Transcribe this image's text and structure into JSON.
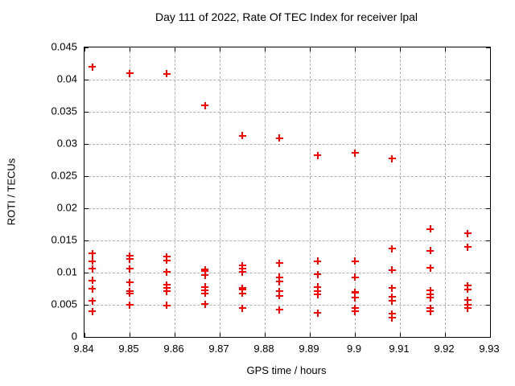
{
  "colors": {
    "marker": "#ff0000",
    "grid": "#b0b0b0",
    "border": "#000000",
    "background": "#ffffff",
    "text": "#000000"
  },
  "chart_data": {
    "type": "scatter",
    "title": "Day 111 of 2022, Rate Of TEC Index for receiver lpal",
    "xlabel": "GPS time / hours",
    "ylabel": "ROTI / TECUs",
    "xlim": [
      9.84,
      9.93
    ],
    "ylim": [
      0,
      0.045
    ],
    "grid": "dashed, at every labeled tick",
    "legend": "none",
    "marker": "plus",
    "x_ticks": [
      {
        "label": "9.84",
        "value": 9.84
      },
      {
        "label": "9.85",
        "value": 9.85
      },
      {
        "label": "9.86",
        "value": 9.86
      },
      {
        "label": "9.87",
        "value": 9.87
      },
      {
        "label": "9.88",
        "value": 9.88
      },
      {
        "label": "9.89",
        "value": 9.89
      },
      {
        "label": "9.9",
        "value": 9.9
      },
      {
        "label": "9.91",
        "value": 9.91
      },
      {
        "label": "9.92",
        "value": 9.92
      },
      {
        "label": "9.93",
        "value": 9.93
      }
    ],
    "y_ticks": [
      {
        "label": "0",
        "value": 0
      },
      {
        "label": "0.005",
        "value": 0.005
      },
      {
        "label": "0.01",
        "value": 0.01
      },
      {
        "label": "0.015",
        "value": 0.015
      },
      {
        "label": "0.02",
        "value": 0.02
      },
      {
        "label": "0.025",
        "value": 0.025
      },
      {
        "label": "0.03",
        "value": 0.03
      },
      {
        "label": "0.035",
        "value": 0.035
      },
      {
        "label": "0.04",
        "value": 0.04
      },
      {
        "label": "0.045",
        "value": 0.045
      }
    ],
    "series": [
      {
        "name": "ROTI",
        "color": "#ff0000",
        "points": [
          [
            9.8417,
            0.042
          ],
          [
            9.8417,
            0.013
          ],
          [
            9.8417,
            0.0118
          ],
          [
            9.8417,
            0.0106
          ],
          [
            9.8417,
            0.0088
          ],
          [
            9.8417,
            0.0075
          ],
          [
            9.8417,
            0.0056
          ],
          [
            9.8417,
            0.004
          ],
          [
            9.85,
            0.041
          ],
          [
            9.85,
            0.0126
          ],
          [
            9.85,
            0.0121
          ],
          [
            9.85,
            0.0106
          ],
          [
            9.85,
            0.0085
          ],
          [
            9.85,
            0.0071
          ],
          [
            9.85,
            0.0068
          ],
          [
            9.85,
            0.005
          ],
          [
            9.8583,
            0.0409
          ],
          [
            9.8583,
            0.0125
          ],
          [
            9.8583,
            0.0119
          ],
          [
            9.8583,
            0.0101
          ],
          [
            9.8583,
            0.0081
          ],
          [
            9.8583,
            0.0076
          ],
          [
            9.8583,
            0.0071
          ],
          [
            9.8583,
            0.0049
          ],
          [
            9.8667,
            0.036
          ],
          [
            9.8667,
            0.0105
          ],
          [
            9.8667,
            0.0103
          ],
          [
            9.8667,
            0.0096
          ],
          [
            9.8667,
            0.0078
          ],
          [
            9.8667,
            0.0073
          ],
          [
            9.8667,
            0.0068
          ],
          [
            9.8667,
            0.0051
          ],
          [
            9.875,
            0.0313
          ],
          [
            9.875,
            0.0111
          ],
          [
            9.875,
            0.0106
          ],
          [
            9.875,
            0.0101
          ],
          [
            9.875,
            0.0076
          ],
          [
            9.875,
            0.0074
          ],
          [
            9.875,
            0.0068
          ],
          [
            9.875,
            0.0045
          ],
          [
            9.8833,
            0.0309
          ],
          [
            9.8833,
            0.0115
          ],
          [
            9.8833,
            0.0093
          ],
          [
            9.8833,
            0.0086
          ],
          [
            9.8833,
            0.0071
          ],
          [
            9.8833,
            0.0064
          ],
          [
            9.8833,
            0.0042
          ],
          [
            9.8917,
            0.0282
          ],
          [
            9.8917,
            0.0118
          ],
          [
            9.8917,
            0.0097
          ],
          [
            9.8917,
            0.0078
          ],
          [
            9.8917,
            0.0071
          ],
          [
            9.8917,
            0.0066
          ],
          [
            9.8917,
            0.0037
          ],
          [
            9.9,
            0.0286
          ],
          [
            9.9,
            0.0118
          ],
          [
            9.9,
            0.0093
          ],
          [
            9.9,
            0.007
          ],
          [
            9.9,
            0.0069
          ],
          [
            9.9,
            0.0061
          ],
          [
            9.9,
            0.0045
          ],
          [
            9.9,
            0.004
          ],
          [
            9.9083,
            0.0277
          ],
          [
            9.9083,
            0.0137
          ],
          [
            9.9083,
            0.0104
          ],
          [
            9.9083,
            0.0076
          ],
          [
            9.9083,
            0.0062
          ],
          [
            9.9083,
            0.0056
          ],
          [
            9.9083,
            0.0036
          ],
          [
            9.9083,
            0.003
          ],
          [
            9.9167,
            0.0168
          ],
          [
            9.9167,
            0.0134
          ],
          [
            9.9167,
            0.0107
          ],
          [
            9.9167,
            0.0072
          ],
          [
            9.9167,
            0.0066
          ],
          [
            9.9167,
            0.0061
          ],
          [
            9.9167,
            0.0045
          ],
          [
            9.9167,
            0.004
          ],
          [
            9.925,
            0.0161
          ],
          [
            9.925,
            0.014
          ],
          [
            9.925,
            0.008
          ],
          [
            9.925,
            0.0074
          ],
          [
            9.925,
            0.0057
          ],
          [
            9.925,
            0.005
          ],
          [
            9.925,
            0.0045
          ]
        ]
      }
    ]
  }
}
